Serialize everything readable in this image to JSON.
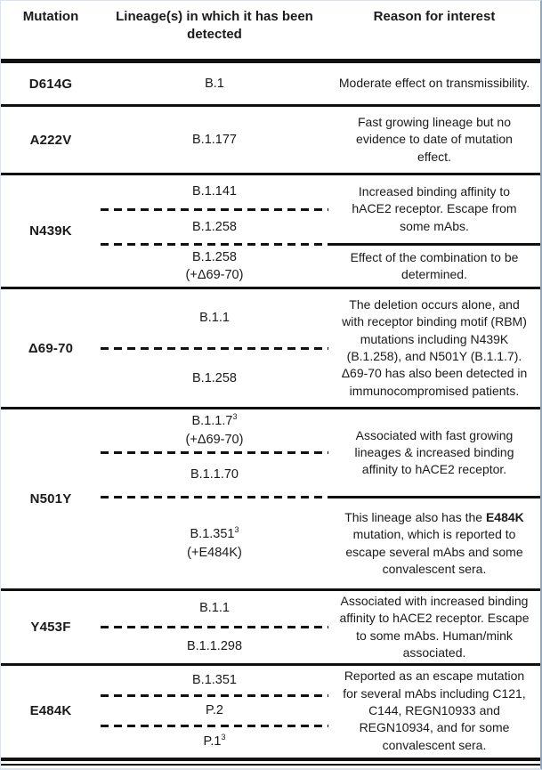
{
  "colors": {
    "line": "#111111",
    "text": "#1a1a1a",
    "page_edge": "#8ba9cc"
  },
  "header": {
    "columns": [
      "Mutation",
      "Lineage(s) in which it has been detected",
      "Reason for interest"
    ]
  },
  "sections": [
    {
      "key": "d614g",
      "mutation": "D614G",
      "groups": [
        {
          "min_height": 46,
          "lineages": [
            {
              "lines": [
                [
                  {
                    "t": "B.1"
                  }
                ]
              ]
            }
          ],
          "reason": [
            {
              "t": "Moderate effect on transmissibility."
            }
          ]
        }
      ]
    },
    {
      "key": "a222v",
      "mutation": "A222V",
      "groups": [
        {
          "min_height": 74,
          "lineages": [
            {
              "lines": [
                [
                  {
                    "t": "B.1.177"
                  }
                ]
              ]
            }
          ],
          "reason": [
            {
              "t": "Fast growing lineage but no evidence to date of mutation effect."
            }
          ]
        }
      ]
    },
    {
      "key": "n439k",
      "mutation": "N439K",
      "groups": [
        {
          "min_height": 76,
          "lineages": [
            {
              "lines": [
                [
                  {
                    "t": "B.1.141"
                  }
                ]
              ]
            },
            {
              "lines": [
                [
                  {
                    "t": "B.1.258"
                  }
                ]
              ]
            }
          ],
          "reason": [
            {
              "t": "Increased binding affinity to hACE2 receptor. Escape from some mAbs."
            }
          ]
        },
        {
          "min_height": 46,
          "lineages": [
            {
              "lines": [
                [
                  {
                    "t": "B.1.258"
                  }
                ],
                [
                  {
                    "t": "(+Δ69-70)"
                  }
                ]
              ]
            }
          ],
          "reason": [
            {
              "t": "Effect of the combination to be determined."
            }
          ]
        }
      ]
    },
    {
      "key": "del69-70",
      "mutation": "Δ69-70",
      "groups": [
        {
          "min_height": 132,
          "lineages": [
            {
              "lines": [
                [
                  {
                    "t": "B.1.1"
                  }
                ]
              ]
            },
            {
              "lines": [
                [
                  {
                    "t": "B.1.258"
                  }
                ]
              ]
            }
          ],
          "reason": [
            {
              "t": "The deletion occurs alone, and with receptor binding motif (RBM) mutations including N439K (B.1.258), and N501Y (B.1.1.7). Δ69-70 has also been detected in immunocompromised patients."
            }
          ]
        }
      ]
    },
    {
      "key": "n501y",
      "mutation": "N501Y",
      "groups": [
        {
          "min_height": 97,
          "lineages": [
            {
              "lines": [
                [
                  {
                    "t": "B.1.1.7"
                  },
                  {
                    "t": "3",
                    "sup": true
                  }
                ],
                [
                  {
                    "t": "(+Δ69-70)"
                  }
                ]
              ]
            },
            {
              "lines": [
                [
                  {
                    "t": "B.1.1.70"
                  }
                ]
              ]
            }
          ],
          "reason": [
            {
              "t": "Associated with fast growing lineages & increased binding affinity to hACE2 receptor."
            }
          ]
        },
        {
          "min_height": 101,
          "lineages": [
            {
              "lines": [
                [
                  {
                    "t": "B.1.351"
                  },
                  {
                    "t": "3",
                    "sup": true
                  }
                ],
                [
                  {
                    "t": "(+E484K)"
                  }
                ]
              ]
            }
          ],
          "reason": [
            {
              "t": "This lineage also has the "
            },
            {
              "t": "E484K",
              "b": true
            },
            {
              "t": " mutation, which is reported to escape several mAbs and some convalescent sera."
            }
          ]
        }
      ]
    },
    {
      "key": "y453f",
      "mutation": "Y453F",
      "groups": [
        {
          "min_height": 78,
          "lineages": [
            {
              "lines": [
                [
                  {
                    "t": "B.1.1"
                  }
                ]
              ]
            },
            {
              "lines": [
                [
                  {
                    "t": "B.1.1.298"
                  }
                ]
              ]
            }
          ],
          "reason": [
            {
              "t": "Associated with increased binding affinity to hACE2 receptor. Escape to some mAbs. Human/mink associated."
            }
          ]
        }
      ]
    },
    {
      "key": "e484k",
      "mutation": "E484K",
      "groups": [
        {
          "min_height": 90,
          "lineages": [
            {
              "lines": [
                [
                  {
                    "t": "B.1.351"
                  }
                ]
              ]
            },
            {
              "lines": [
                [
                  {
                    "t": "P.2"
                  }
                ]
              ]
            },
            {
              "lines": [
                [
                  {
                    "t": "P.1"
                  },
                  {
                    "t": "3",
                    "sup": true
                  }
                ]
              ]
            }
          ],
          "reason": [
            {
              "t": "Reported as an escape mutation for several mAbs including C121, C144, REGN10933 and REGN10934, and for some convalescent sera."
            }
          ]
        }
      ]
    }
  ]
}
